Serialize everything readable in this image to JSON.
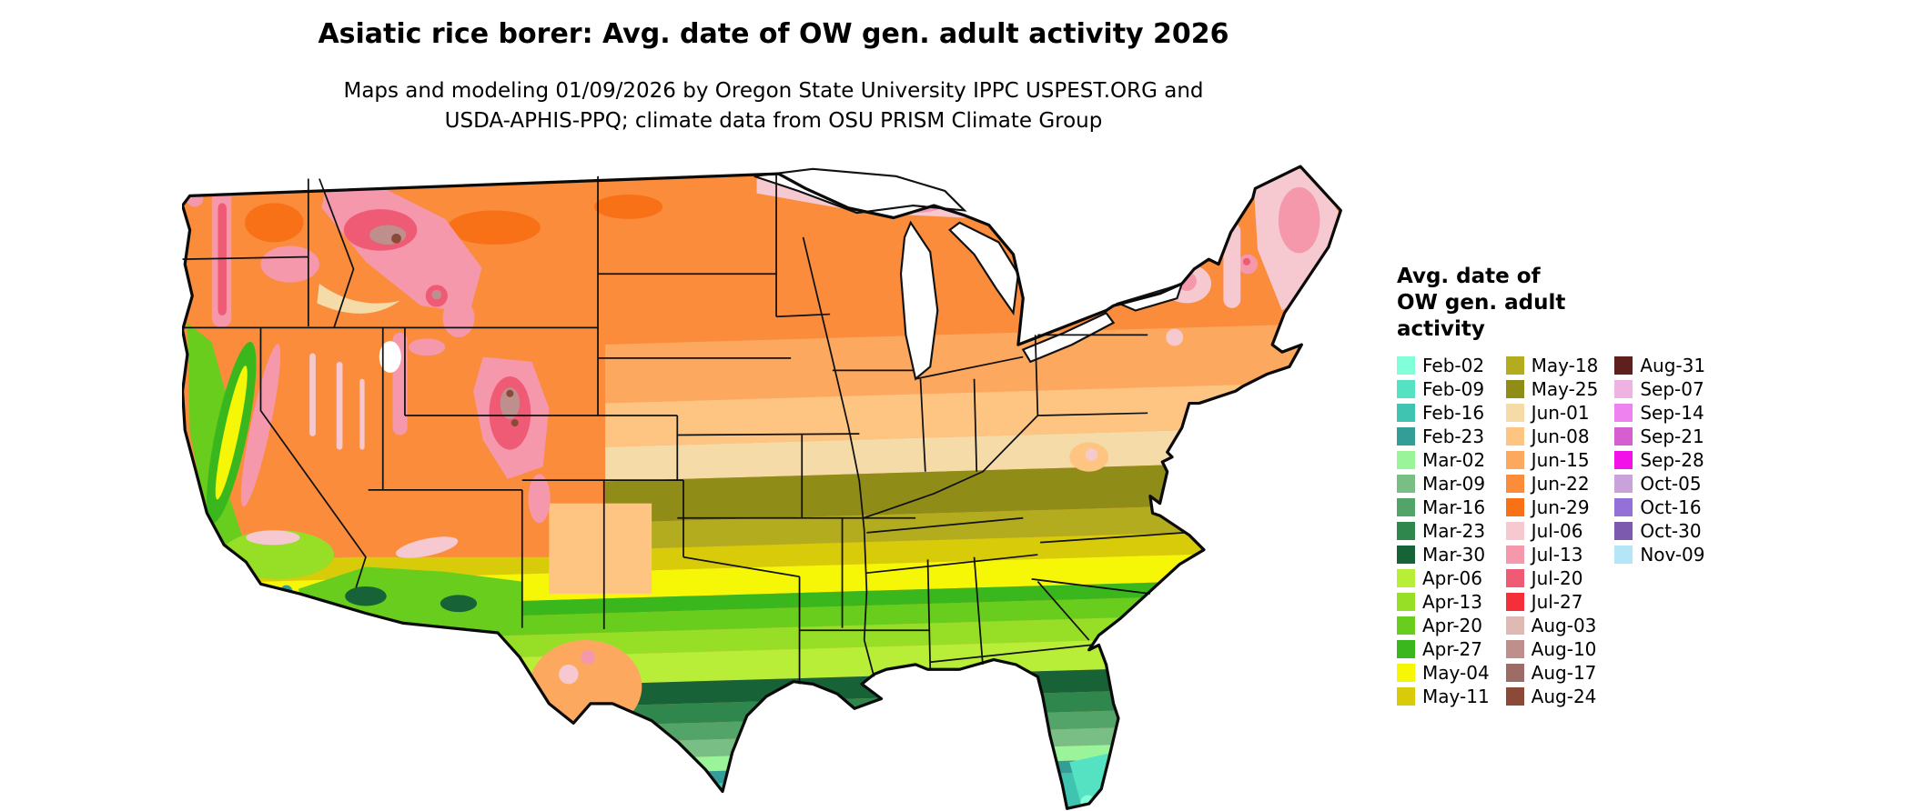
{
  "title": "Asiatic rice borer: Avg. date of OW gen. adult activity 2026",
  "subtitle": {
    "line1": "Maps and modeling 01/09/2026 by Oregon State University IPPC USPEST.ORG and",
    "line2": "USDA-APHIS-PPQ; climate data from OSU PRISM Climate Group"
  },
  "legend": {
    "title_lines": [
      "Avg. date of",
      "OW gen. adult",
      "activity"
    ],
    "columns": [
      [
        {
          "label": "Feb-02",
          "color": "#80FFD8"
        },
        {
          "label": "Feb-09",
          "color": "#55E2C2"
        },
        {
          "label": "Feb-16",
          "color": "#3FC4B2"
        },
        {
          "label": "Feb-23",
          "color": "#339E98"
        },
        {
          "label": "Mar-02",
          "color": "#9AF59A"
        },
        {
          "label": "Mar-09",
          "color": "#79BE85"
        },
        {
          "label": "Mar-16",
          "color": "#52A468"
        },
        {
          "label": "Mar-23",
          "color": "#2F874D"
        },
        {
          "label": "Mar-30",
          "color": "#176237"
        },
        {
          "label": "Apr-06",
          "color": "#B8ED38"
        },
        {
          "label": "Apr-13",
          "color": "#97DE26"
        },
        {
          "label": "Apr-20",
          "color": "#68CD1D"
        },
        {
          "label": "Apr-27",
          "color": "#3BB71E"
        },
        {
          "label": "May-04",
          "color": "#F6F607"
        },
        {
          "label": "May-11",
          "color": "#D8CB0A"
        }
      ],
      [
        {
          "label": "May-18",
          "color": "#B3AC1E"
        },
        {
          "label": "May-25",
          "color": "#8F8C17"
        },
        {
          "label": "Jun-01",
          "color": "#F5DBA8"
        },
        {
          "label": "Jun-08",
          "color": "#FDC482"
        },
        {
          "label": "Jun-15",
          "color": "#FCA95F"
        },
        {
          "label": "Jun-22",
          "color": "#FA8C3C"
        },
        {
          "label": "Jun-29",
          "color": "#F87117"
        },
        {
          "label": "Jul-06",
          "color": "#F6C9D0"
        },
        {
          "label": "Jul-13",
          "color": "#F598AC"
        },
        {
          "label": "Jul-20",
          "color": "#EF5A75"
        },
        {
          "label": "Jul-27",
          "color": "#F52F39"
        },
        {
          "label": "Aug-03",
          "color": "#DFBAB4"
        },
        {
          "label": "Aug-10",
          "color": "#BE8F8C"
        },
        {
          "label": "Aug-17",
          "color": "#9D6C66"
        },
        {
          "label": "Aug-24",
          "color": "#8B4A38"
        }
      ],
      [
        {
          "label": "Aug-31",
          "color": "#5E1F1D"
        },
        {
          "label": "Sep-07",
          "color": "#EFB3E3"
        },
        {
          "label": "Sep-14",
          "color": "#EE82EE"
        },
        {
          "label": "Sep-21",
          "color": "#D55FD0"
        },
        {
          "label": "Sep-28",
          "color": "#F311E9"
        },
        {
          "label": "Oct-05",
          "color": "#C9A2DC"
        },
        {
          "label": "Oct-16",
          "color": "#9471D6"
        },
        {
          "label": "Oct-30",
          "color": "#7C5BAE"
        },
        {
          "label": "Nov-09",
          "color": "#B5E6F7"
        }
      ]
    ]
  },
  "map": {
    "region": "Continental United States"
  }
}
